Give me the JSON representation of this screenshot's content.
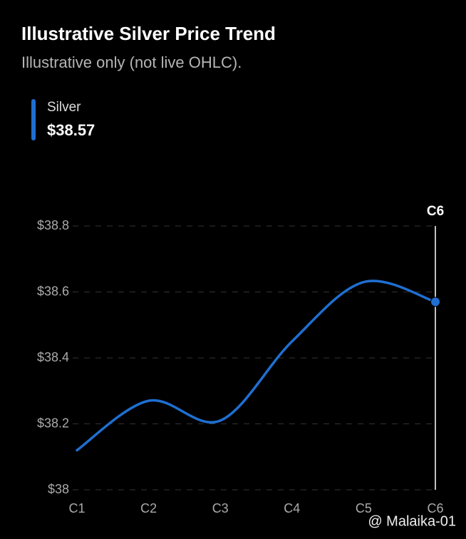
{
  "chart_data": {
    "type": "line",
    "title": "Illustrative Silver Price Trend",
    "subtitle": "Illustrative only (not live OHLC).",
    "categories": [
      "C1",
      "C2",
      "C3",
      "C4",
      "C5",
      "C6"
    ],
    "series": [
      {
        "name": "Silver",
        "color": "#1f6fd1",
        "values": [
          38.12,
          38.27,
          38.21,
          38.45,
          38.63,
          38.57
        ],
        "value_labels": [
          null,
          null,
          null,
          null,
          null,
          "$38.57"
        ]
      }
    ],
    "ylim": [
      38,
      38.8
    ],
    "yticks": [
      {
        "value": 38,
        "label": "$38"
      },
      {
        "value": 38.2,
        "label": "$38.2"
      },
      {
        "value": 38.4,
        "label": "$38.4"
      },
      {
        "value": 38.6,
        "label": "$38.6"
      },
      {
        "value": 38.8,
        "label": "$38.8"
      }
    ],
    "grid": true,
    "highlight": "C6",
    "watermark": "@ Malaika-01"
  }
}
